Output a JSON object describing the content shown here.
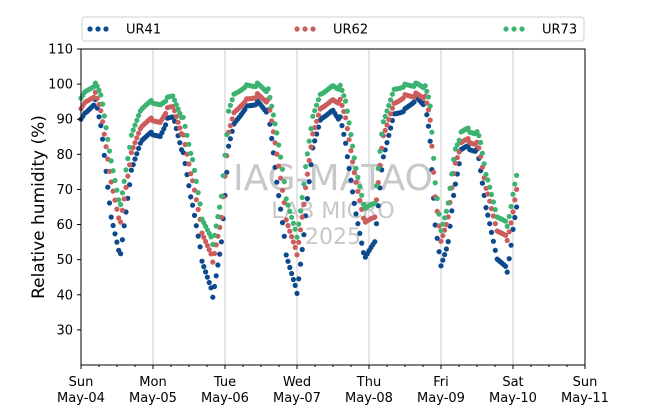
{
  "chart_data": {
    "type": "scatter",
    "ylabel": "Relative humidity (%)",
    "xlabel": "",
    "ylim": [
      20,
      110
    ],
    "yticks": [
      30,
      40,
      50,
      60,
      70,
      80,
      90,
      100,
      110
    ],
    "xlim_days": [
      0,
      7
    ],
    "xticks": [
      {
        "day": "Sun",
        "date": "May-04"
      },
      {
        "day": "Mon",
        "date": "May-05"
      },
      {
        "day": "Tue",
        "date": "May-06"
      },
      {
        "day": "Wed",
        "date": "May-07"
      },
      {
        "day": "Thu",
        "date": "May-08"
      },
      {
        "day": "Fri",
        "date": "May-09"
      },
      {
        "day": "Sat",
        "date": "May-10"
      },
      {
        "day": "Sun",
        "date": "May-11"
      }
    ],
    "grid": "vertical",
    "legend_position": "top",
    "watermark": [
      "IAG-MATAO",
      "LAB MICRO",
      "2025"
    ],
    "series": [
      {
        "name": "UR41",
        "color": "#0b4a8c",
        "points": [
          [
            0,
            90
          ],
          [
            0.08,
            92
          ],
          [
            0.2,
            95
          ],
          [
            0.3,
            85
          ],
          [
            0.42,
            62
          ],
          [
            0.55,
            51
          ],
          [
            0.7,
            75
          ],
          [
            0.85,
            84
          ],
          [
            1.0,
            86
          ],
          [
            1.1,
            85
          ],
          [
            1.2,
            90
          ],
          [
            1.3,
            90
          ],
          [
            1.42,
            80
          ],
          [
            1.55,
            65
          ],
          [
            1.68,
            50
          ],
          [
            1.83,
            40
          ],
          [
            1.95,
            55
          ],
          [
            2.05,
            82
          ],
          [
            2.15,
            90
          ],
          [
            2.3,
            94
          ],
          [
            2.45,
            95
          ],
          [
            2.6,
            92
          ],
          [
            2.72,
            72
          ],
          [
            2.85,
            52
          ],
          [
            3.0,
            41
          ],
          [
            3.12,
            62
          ],
          [
            3.22,
            82
          ],
          [
            3.35,
            91
          ],
          [
            3.5,
            93
          ],
          [
            3.6,
            90
          ],
          [
            3.7,
            80
          ],
          [
            3.82,
            63
          ],
          [
            3.95,
            50
          ],
          [
            4.08,
            55
          ],
          [
            4.2,
            80
          ],
          [
            4.35,
            92
          ],
          [
            4.5,
            93
          ],
          [
            4.65,
            96
          ],
          [
            4.78,
            94
          ],
          [
            4.85,
            84
          ],
          [
            4.92,
            60
          ],
          [
            5.0,
            48
          ],
          [
            5.1,
            55
          ],
          [
            5.2,
            72
          ],
          [
            5.28,
            81
          ],
          [
            5.4,
            82
          ],
          [
            5.5,
            81
          ],
          [
            5.55,
            76
          ],
          [
            5.65,
            62
          ],
          [
            5.78,
            50
          ],
          [
            5.92,
            47
          ],
          [
            6.0,
            58
          ],
          [
            6.05,
            65
          ]
        ]
      },
      {
        "name": "UR62",
        "color": "#cd5c5c",
        "points": [
          [
            0,
            93
          ],
          [
            0.08,
            95
          ],
          [
            0.2,
            97
          ],
          [
            0.3,
            90
          ],
          [
            0.42,
            72
          ],
          [
            0.55,
            60
          ],
          [
            0.7,
            80
          ],
          [
            0.85,
            88
          ],
          [
            1.0,
            90
          ],
          [
            1.1,
            89
          ],
          [
            1.2,
            93
          ],
          [
            1.3,
            93
          ],
          [
            1.42,
            85
          ],
          [
            1.55,
            72
          ],
          [
            1.68,
            58
          ],
          [
            1.83,
            50
          ],
          [
            1.95,
            62
          ],
          [
            2.05,
            86
          ],
          [
            2.15,
            93
          ],
          [
            2.3,
            96
          ],
          [
            2.45,
            97
          ],
          [
            2.6,
            95
          ],
          [
            2.72,
            80
          ],
          [
            2.85,
            62
          ],
          [
            3.0,
            52
          ],
          [
            3.12,
            70
          ],
          [
            3.22,
            86
          ],
          [
            3.35,
            94
          ],
          [
            3.5,
            96
          ],
          [
            3.6,
            95
          ],
          [
            3.7,
            88
          ],
          [
            3.82,
            72
          ],
          [
            3.95,
            60
          ],
          [
            4.08,
            62
          ],
          [
            4.2,
            86
          ],
          [
            4.35,
            95
          ],
          [
            4.5,
            97
          ],
          [
            4.65,
            97
          ],
          [
            4.78,
            96
          ],
          [
            4.85,
            90
          ],
          [
            4.92,
            68
          ],
          [
            5.0,
            55
          ],
          [
            5.1,
            62
          ],
          [
            5.2,
            78
          ],
          [
            5.28,
            83
          ],
          [
            5.4,
            84
          ],
          [
            5.5,
            83
          ],
          [
            5.55,
            80
          ],
          [
            5.65,
            68
          ],
          [
            5.78,
            58
          ],
          [
            5.92,
            56
          ],
          [
            6.0,
            63
          ],
          [
            6.05,
            70
          ]
        ]
      },
      {
        "name": "UR73",
        "color": "#3cb371",
        "points": [
          [
            0,
            96
          ],
          [
            0.08,
            98
          ],
          [
            0.2,
            100
          ],
          [
            0.3,
            95
          ],
          [
            0.42,
            78
          ],
          [
            0.55,
            65
          ],
          [
            0.7,
            85
          ],
          [
            0.85,
            93
          ],
          [
            1.0,
            95
          ],
          [
            1.1,
            94
          ],
          [
            1.2,
            96
          ],
          [
            1.3,
            96
          ],
          [
            1.42,
            90
          ],
          [
            1.55,
            78
          ],
          [
            1.68,
            62
          ],
          [
            1.83,
            55
          ],
          [
            1.95,
            68
          ],
          [
            2.05,
            92
          ],
          [
            2.15,
            98
          ],
          [
            2.3,
            100
          ],
          [
            2.45,
            100
          ],
          [
            2.6,
            98
          ],
          [
            2.72,
            86
          ],
          [
            2.85,
            68
          ],
          [
            3.0,
            57
          ],
          [
            3.12,
            76
          ],
          [
            3.22,
            91
          ],
          [
            3.35,
            98
          ],
          [
            3.5,
            100
          ],
          [
            3.6,
            99
          ],
          [
            3.7,
            93
          ],
          [
            3.82,
            76
          ],
          [
            3.95,
            64
          ],
          [
            4.08,
            66
          ],
          [
            4.2,
            90
          ],
          [
            4.35,
            99
          ],
          [
            4.5,
            100
          ],
          [
            4.65,
            100
          ],
          [
            4.78,
            99
          ],
          [
            4.85,
            94
          ],
          [
            4.92,
            72
          ],
          [
            5.0,
            58
          ],
          [
            5.1,
            66
          ],
          [
            5.2,
            82
          ],
          [
            5.28,
            86
          ],
          [
            5.4,
            87
          ],
          [
            5.5,
            86
          ],
          [
            5.55,
            84
          ],
          [
            5.65,
            72
          ],
          [
            5.78,
            62
          ],
          [
            5.92,
            60
          ],
          [
            6.0,
            68
          ],
          [
            6.05,
            74
          ]
        ]
      }
    ]
  }
}
